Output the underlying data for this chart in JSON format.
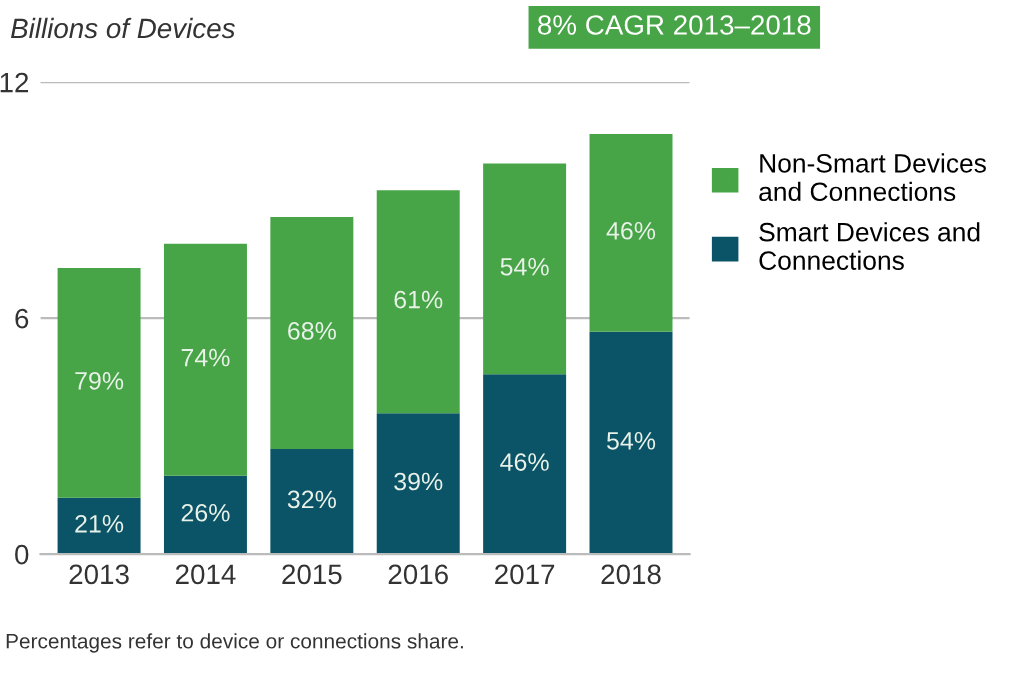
{
  "chart_data": {
    "type": "bar",
    "stacked": true,
    "ylabel": "Billions of Devices",
    "categories": [
      "2013",
      "2014",
      "2015",
      "2016",
      "2017",
      "2018"
    ],
    "series": [
      {
        "name": "Smart Devices and\nConnections",
        "color": "#0b5468",
        "values": [
          1.43,
          1.99,
          2.67,
          3.58,
          4.57,
          5.65
        ]
      },
      {
        "name": "Non-Smart Devices\nand Connections",
        "color": "#47a447",
        "values": [
          5.84,
          5.9,
          5.9,
          5.67,
          5.36,
          5.03
        ]
      }
    ],
    "ylim": [
      0,
      12
    ],
    "yticks": [
      0,
      6,
      12
    ],
    "grid": "y",
    "legend": "right",
    "annotations": [
      "8% CAGR 2013–2018",
      "Percentages refer to device or connections share.",
      "21%",
      "26%",
      "32%",
      "39%",
      "46%",
      "54%",
      "79%",
      "74%",
      "68%",
      "61%",
      "54%",
      "46%"
    ]
  }
}
